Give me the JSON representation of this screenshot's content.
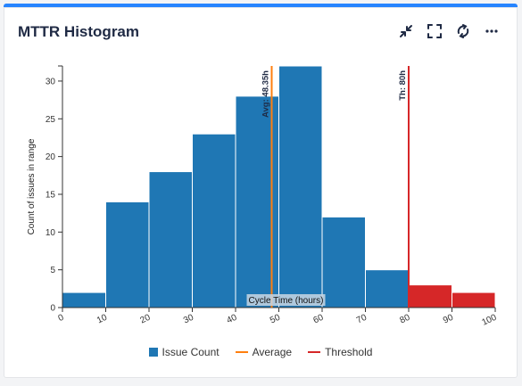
{
  "widget": {
    "title": "MTTR Histogram",
    "icons": [
      "collapse-icon",
      "fullscreen-icon",
      "refresh-icon",
      "more-icon"
    ]
  },
  "colors": {
    "bar": "#1f77b4",
    "bar_over_threshold": "#d62728",
    "average": "#ff7f0e",
    "threshold": "#d62728",
    "accent": "#2684ff"
  },
  "chart_data": {
    "type": "bar",
    "title": "",
    "xlabel": "Cycle Time (hours)",
    "ylabel": "Count of issues in range",
    "xlim": [
      0,
      100
    ],
    "ylim": [
      0,
      32
    ],
    "x_ticks": [
      0,
      10,
      20,
      30,
      40,
      50,
      60,
      70,
      80,
      90,
      100
    ],
    "y_ticks": [
      0,
      5,
      10,
      15,
      20,
      25,
      30
    ],
    "bins": [
      {
        "from": 0,
        "to": 10,
        "value": 2
      },
      {
        "from": 10,
        "to": 20,
        "value": 14
      },
      {
        "from": 20,
        "to": 30,
        "value": 18
      },
      {
        "from": 30,
        "to": 40,
        "value": 23
      },
      {
        "from": 40,
        "to": 50,
        "value": 28
      },
      {
        "from": 50,
        "to": 60,
        "value": 32
      },
      {
        "from": 60,
        "to": 70,
        "value": 12
      },
      {
        "from": 70,
        "to": 80,
        "value": 5
      },
      {
        "from": 80,
        "to": 90,
        "value": 3
      },
      {
        "from": 90,
        "to": 100,
        "value": 2
      }
    ],
    "average": {
      "value": 48.35,
      "label": "Avg: 48.35h"
    },
    "threshold": {
      "value": 80,
      "label": "Th: 80h"
    },
    "legend": [
      "Issue Count",
      "Average",
      "Threshold"
    ],
    "legend_position": "bottom"
  }
}
